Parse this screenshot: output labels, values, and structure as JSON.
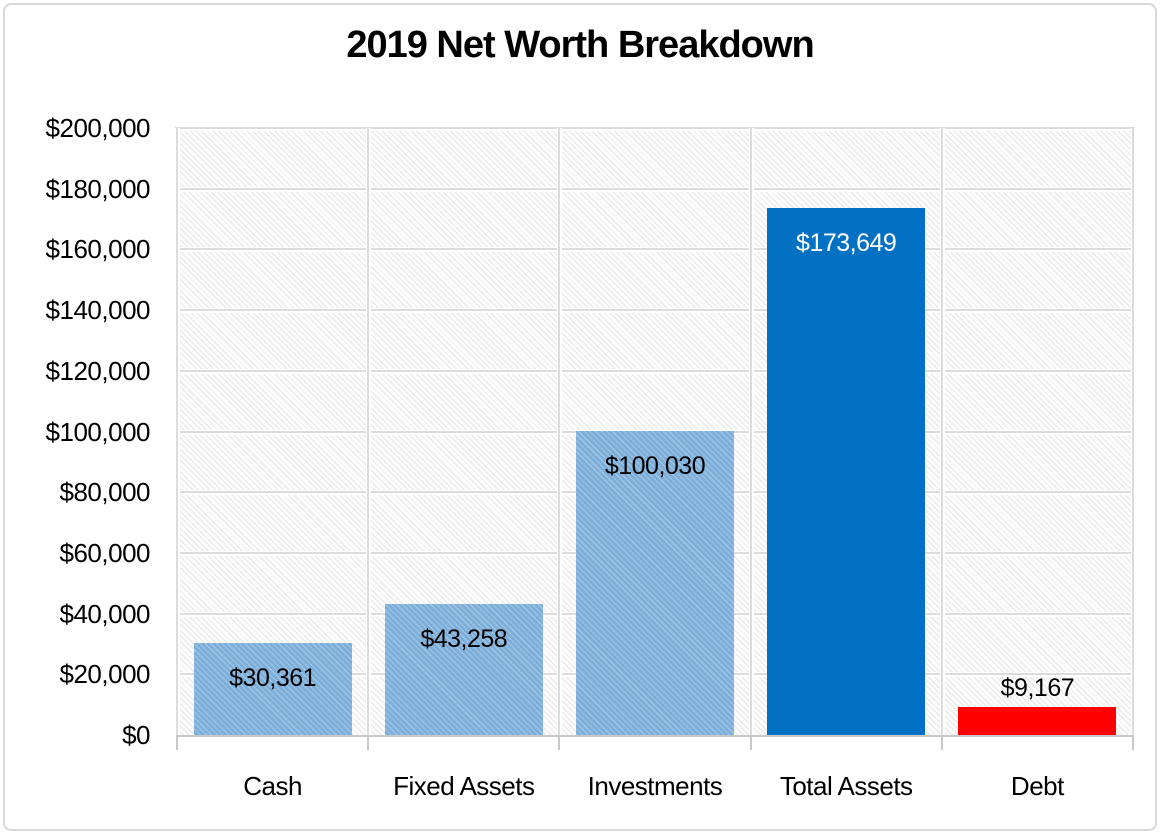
{
  "chart_data": {
    "type": "bar",
    "title": "2019 Net Worth Breakdown",
    "categories": [
      "Cash",
      "Fixed Assets",
      "Investments",
      "Total Assets",
      "Debt"
    ],
    "values": [
      30361,
      43258,
      100030,
      173649,
      9167
    ],
    "value_labels": [
      "$30,361",
      "$43,258",
      "$100,030",
      "$173,649",
      "$9,167"
    ],
    "value_label_placement": [
      "inside",
      "inside",
      "inside",
      "inside",
      "above"
    ],
    "value_label_colors": [
      "#000000",
      "#000000",
      "#000000",
      "#ffffff",
      "#000000"
    ],
    "bar_colors": [
      "#7caed9",
      "#7caed9",
      "#7caed9",
      "#0271c4",
      "#ff0000"
    ],
    "bar_textured": [
      true,
      true,
      true,
      false,
      false
    ],
    "xlabel": "",
    "ylabel": "",
    "ylim": [
      0,
      200000
    ],
    "ytick_step": 20000,
    "ytick_labels": [
      "$0",
      "$20,000",
      "$40,000",
      "$60,000",
      "$80,000",
      "$100,000",
      "$120,000",
      "$140,000",
      "$160,000",
      "$180,000",
      "$200,000"
    ],
    "grid": "horizontal and vertical gridlines",
    "legend": "none",
    "plot_background": "light diagonal hatch pattern"
  },
  "colors": {
    "gridline": "#dcdcdc",
    "axis_line": "#c8c8c8",
    "hatch": "#e6e6e6",
    "title_text": "#000000",
    "tick_text": "#000000",
    "frame_border": "#d9d9d9"
  }
}
